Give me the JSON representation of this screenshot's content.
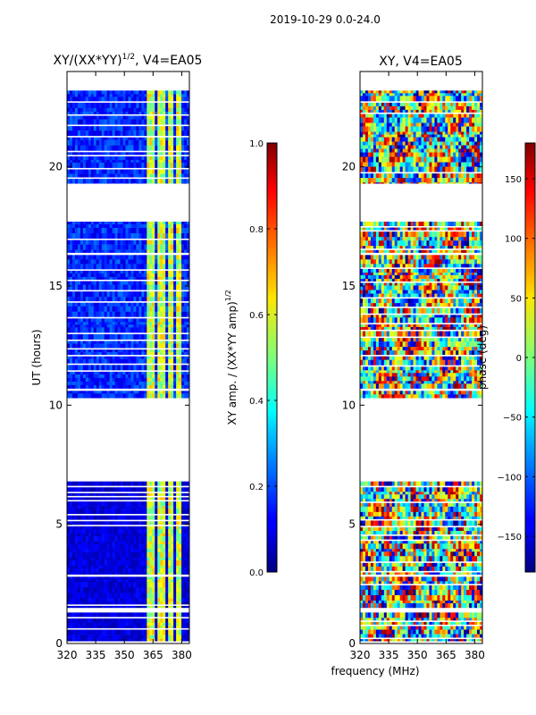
{
  "figure": {
    "suptitle": "2019-10-29 0.0-24.0"
  },
  "chart_data": [
    {
      "type": "heatmap",
      "title_main": "XY/(XX*YY)",
      "title_sup": "1/2",
      "title_tail": ", V4=EA05",
      "xlabel": "frequency (MHz)",
      "ylabel": "UT (hours)",
      "xlim": [
        320,
        384
      ],
      "ylim": [
        0,
        24
      ],
      "xticks": [
        320,
        335,
        350,
        365,
        380
      ],
      "yticks": [
        0,
        5,
        10,
        15,
        20
      ],
      "data_blocks_ut": [
        [
          0.1,
          1.3
        ],
        [
          1.5,
          2.8
        ],
        [
          2.9,
          6.8
        ],
        [
          10.3,
          10.6
        ],
        [
          10.7,
          16.3
        ],
        [
          16.4,
          17.7
        ],
        [
          19.3,
          23.2
        ]
      ],
      "gaps_ut": [
        [
          6.8,
          10.3
        ],
        [
          17.7,
          19.3
        ]
      ],
      "bright_channels_mhz": [
        [
          362,
          366
        ],
        [
          367,
          371
        ],
        [
          373,
          376
        ],
        [
          377,
          380
        ]
      ],
      "colormap": "jet",
      "colorbar": {
        "label_main": "XY amp. / (XX*YY amp)",
        "label_sup": "1/2",
        "range": [
          0.0,
          1.0
        ],
        "ticks": [
          "0.0",
          "0.2",
          "0.4",
          "0.6",
          "0.8",
          "1.0"
        ]
      }
    },
    {
      "type": "heatmap",
      "title": "XY, V4=EA05",
      "xlabel": "frequency (MHz)",
      "xlim": [
        320,
        384
      ],
      "ylim": [
        0,
        24
      ],
      "xticks": [
        320,
        335,
        350,
        365,
        380
      ],
      "yticks": [
        0,
        5,
        10,
        15,
        20
      ],
      "data_blocks_ut": [
        [
          0.1,
          1.3
        ],
        [
          1.5,
          2.8
        ],
        [
          2.9,
          6.8
        ],
        [
          10.3,
          10.6
        ],
        [
          10.7,
          16.3
        ],
        [
          16.4,
          17.7
        ],
        [
          19.3,
          23.2
        ]
      ],
      "gaps_ut": [
        [
          6.8,
          10.3
        ],
        [
          17.7,
          19.3
        ]
      ],
      "colormap": "jet",
      "colorbar": {
        "label": "phase (deg)",
        "range": [
          -180,
          180
        ],
        "ticks": [
          "−150",
          "−100",
          "−50",
          "0",
          "50",
          "100",
          "150"
        ]
      }
    }
  ]
}
